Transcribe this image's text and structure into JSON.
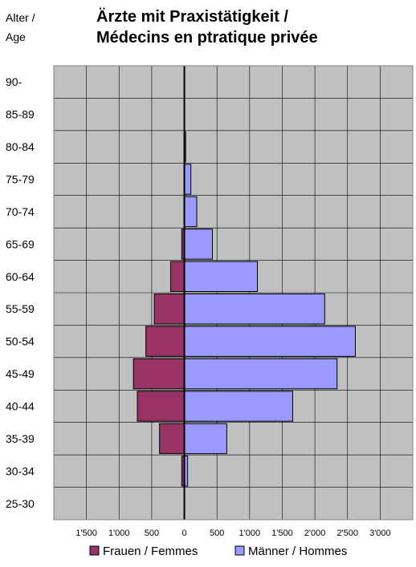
{
  "chart_data": {
    "type": "bar",
    "orientation": "horizontal",
    "title": "Ärzte mit Praxistätigkeit /\nMédecins en ptratique privée",
    "ylabel": "Alter /\nAge",
    "categories": [
      "90-",
      "85-89",
      "80-84",
      "75-79",
      "70-74",
      "65-69",
      "60-64",
      "55-59",
      "50-54",
      "45-49",
      "40-44",
      "35-39",
      "30-34",
      "25-30"
    ],
    "series": [
      {
        "name": "Frauen / Femmes",
        "values": [
          0,
          0,
          0,
          0,
          5,
          40,
          210,
          460,
          590,
          780,
          720,
          380,
          40,
          0
        ]
      },
      {
        "name": "Männer / Hommes",
        "values": [
          0,
          5,
          20,
          100,
          190,
          430,
          1120,
          2150,
          2620,
          2340,
          1660,
          650,
          50,
          0
        ]
      }
    ],
    "xlim": [
      -2000,
      3500
    ],
    "x_tick_values": [
      -1500,
      -1000,
      -500,
      0,
      500,
      1000,
      1500,
      2000,
      2500,
      3000
    ],
    "x_tick_labels": [
      "1'500",
      "1'000",
      "500",
      "0",
      "500",
      "1'000",
      "1'500",
      "2'000",
      "2'500",
      "3'000"
    ],
    "grid": true,
    "legend_position": "bottom",
    "colors": {
      "plot_background": "#c0c0c0",
      "grid": "#000000",
      "frauen": "#993366",
      "maenner": "#9999ff"
    }
  }
}
